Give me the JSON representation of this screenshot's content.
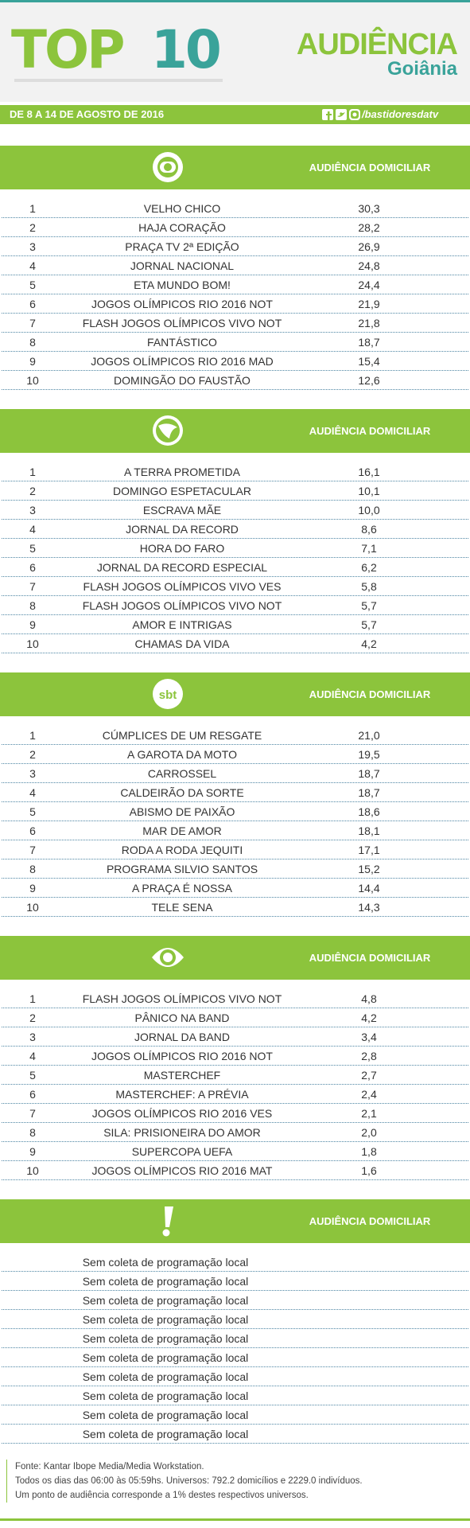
{
  "header": {
    "title_top": "TOP",
    "title_num": "10",
    "brand": "AUDIÊNCIA",
    "city": "Goiânia"
  },
  "subheader": {
    "period": "DE 8 A 14 DE AGOSTO DE 2016",
    "handle": "/bastidoresdatv"
  },
  "sections": [
    {
      "heading": "AUDIÊNCIA DOMICILIAR",
      "rows": [
        [
          "1",
          "VELHO CHICO",
          "30,3"
        ],
        [
          "2",
          "HAJA CORAÇÃO",
          "28,2"
        ],
        [
          "3",
          "PRAÇA TV 2ª EDIÇÃO",
          "26,9"
        ],
        [
          "4",
          "JORNAL NACIONAL",
          "24,8"
        ],
        [
          "5",
          "ETA MUNDO BOM!",
          "24,4"
        ],
        [
          "6",
          "JOGOS OLÍMPICOS RIO 2016 NOT",
          "21,9"
        ],
        [
          "7",
          "FLASH JOGOS OLÍMPICOS VIVO NOT",
          "21,8"
        ],
        [
          "8",
          "FANTÁSTICO",
          "18,7"
        ],
        [
          "9",
          "JOGOS OLÍMPICOS RIO 2016 MAD",
          "15,4"
        ],
        [
          "10",
          "DOMINGÃO DO FAUSTÃO",
          "12,6"
        ]
      ]
    },
    {
      "heading": "AUDIÊNCIA DOMICILIAR",
      "rows": [
        [
          "1",
          "A TERRA PROMETIDA",
          "16,1"
        ],
        [
          "2",
          "DOMINGO ESPETACULAR",
          "10,1"
        ],
        [
          "3",
          "ESCRAVA MÃE",
          "10,0"
        ],
        [
          "4",
          "JORNAL DA RECORD",
          "8,6"
        ],
        [
          "5",
          "HORA DO FARO",
          "7,1"
        ],
        [
          "6",
          "JORNAL DA RECORD ESPECIAL",
          "6,2"
        ],
        [
          "7",
          "FLASH JOGOS OLÍMPICOS VIVO VES",
          "5,8"
        ],
        [
          "8",
          "FLASH JOGOS OLÍMPICOS VIVO NOT",
          "5,7"
        ],
        [
          "9",
          "AMOR E INTRIGAS",
          "5,7"
        ],
        [
          "10",
          "CHAMAS DA VIDA",
          "4,2"
        ]
      ]
    },
    {
      "logo_text": "sbt",
      "heading": "AUDIÊNCIA DOMICILIAR",
      "rows": [
        [
          "1",
          "CÚMPLICES DE UM RESGATE",
          "21,0"
        ],
        [
          "2",
          "A GAROTA DA MOTO",
          "19,5"
        ],
        [
          "3",
          "CARROSSEL",
          "18,7"
        ],
        [
          "4",
          "CALDEIRÃO DA SORTE",
          "18,7"
        ],
        [
          "5",
          "ABISMO DE PAIXÃO",
          "18,6"
        ],
        [
          "6",
          "MAR DE AMOR",
          "18,1"
        ],
        [
          "7",
          "RODA A RODA JEQUITI",
          "17,1"
        ],
        [
          "8",
          "PROGRAMA SILVIO SANTOS",
          "15,2"
        ],
        [
          "9",
          "A PRAÇA É NOSSA",
          "14,4"
        ],
        [
          "10",
          "TELE SENA",
          "14,3"
        ]
      ]
    },
    {
      "heading": "AUDIÊNCIA DOMICILIAR",
      "rows": [
        [
          "1",
          "FLASH JOGOS OLÍMPICOS VIVO NOT",
          "4,8"
        ],
        [
          "2",
          "PÂNICO NA BAND",
          "4,2"
        ],
        [
          "3",
          "JORNAL DA BAND",
          "3,4"
        ],
        [
          "4",
          "JOGOS OLÍMPICOS RIO 2016 NOT",
          "2,8"
        ],
        [
          "5",
          "MASTERCHEF",
          "2,7"
        ],
        [
          "6",
          "MASTERCHEF: A PRÉVIA",
          "2,4"
        ],
        [
          "7",
          "JOGOS OLÍMPICOS RIO 2016 VES",
          "2,1"
        ],
        [
          "8",
          "SILA: PRISIONEIRA DO AMOR",
          "2,0"
        ],
        [
          "9",
          "SUPERCOPA UEFA",
          "1,8"
        ],
        [
          "10",
          "JOGOS OLÍMPICOS RIO 2016 MAT",
          "1,6"
        ]
      ]
    },
    {
      "heading": "AUDIÊNCIA DOMICILIAR",
      "rows": [
        [
          "Sem coleta de programação local"
        ],
        [
          "Sem coleta de programação local"
        ],
        [
          "Sem coleta de programação local"
        ],
        [
          "Sem coleta de programação local"
        ],
        [
          "Sem coleta de programação local"
        ],
        [
          "Sem coleta de programação local"
        ],
        [
          "Sem coleta de programação local"
        ],
        [
          "Sem coleta de programação local"
        ],
        [
          "Sem coleta de programação local"
        ],
        [
          "Sem coleta de programação local"
        ]
      ]
    }
  ],
  "footer": [
    "Fonte: Kantar Ibope Media/Media Workstation.",
    "Todos os dias das 06:00 às 05:59hs. Universos: 792.2 domicílios e 2229.0 indivíduos.",
    "Um ponto de audiência corresponde a 1% destes respectivos universos."
  ]
}
